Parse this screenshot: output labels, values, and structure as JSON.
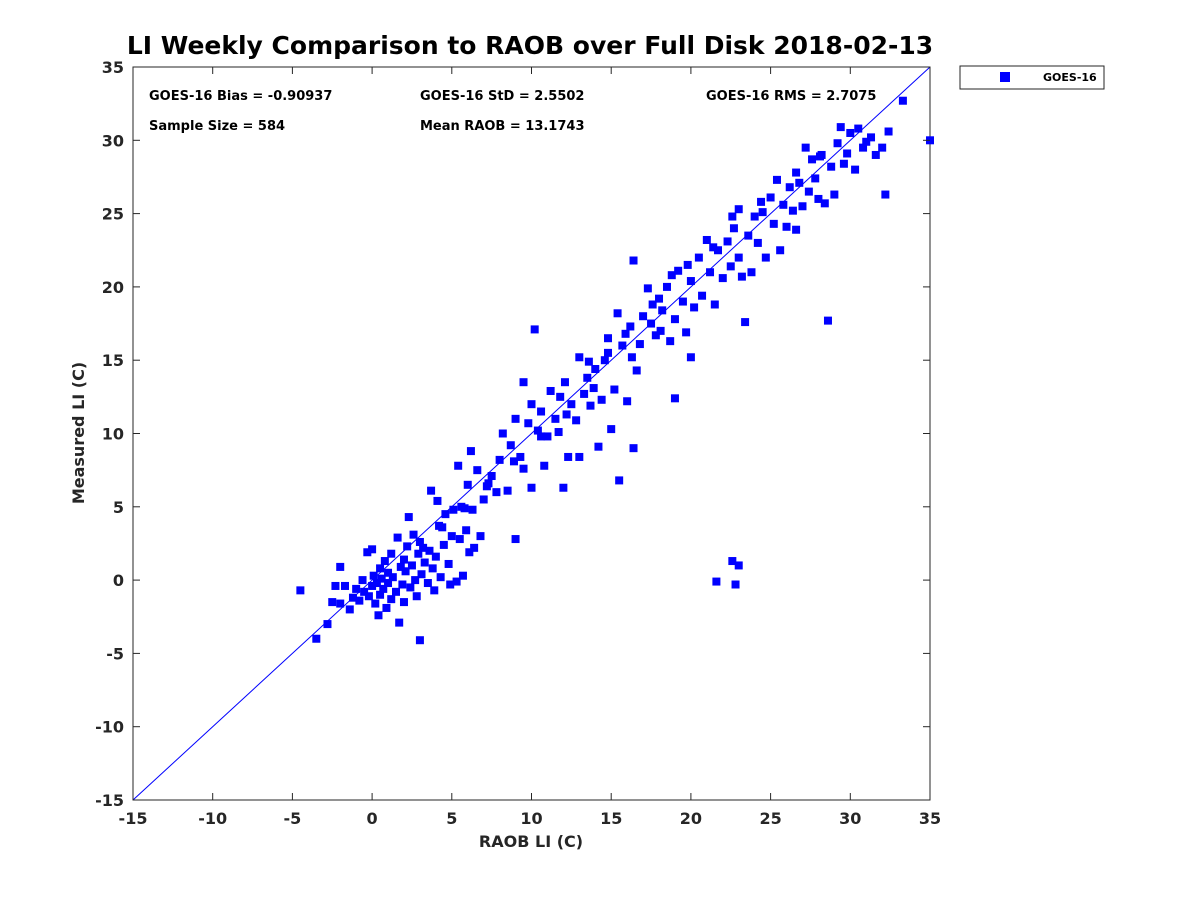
{
  "chart_data": {
    "type": "scatter",
    "title": "LI Weekly Comparison to RAOB over Full Disk 2018-02-13",
    "xlabel": "RAOB LI (C)",
    "ylabel": "Measured LI (C)",
    "xlim": [
      -15,
      35
    ],
    "ylim": [
      -15,
      35
    ],
    "xticks": [
      "-15",
      "-10",
      "-5",
      "0",
      "5",
      "10",
      "15",
      "20",
      "25",
      "30",
      "35"
    ],
    "yticks": [
      "-15",
      "-10",
      "-5",
      "0",
      "5",
      "10",
      "15",
      "20",
      "25",
      "30",
      "35"
    ],
    "grid": false,
    "legend_position": "top-right outside",
    "reference_line": {
      "from": [
        -15,
        -15
      ],
      "to": [
        35,
        35
      ],
      "color": "#0000ff"
    },
    "stats": {
      "bias": "GOES-16 Bias = -0.90937",
      "std": "GOES-16 StD = 2.5502",
      "rms": "GOES-16 RMS = 2.7075",
      "sample": "Sample Size = 584",
      "mean": "Mean RAOB = 13.1743"
    },
    "series": [
      {
        "name": "GOES-16",
        "color": "#0000ff",
        "marker": "square",
        "points": [
          [
            -4.5,
            -0.7
          ],
          [
            -3.5,
            -4.0
          ],
          [
            -2.8,
            -3.0
          ],
          [
            -2.5,
            -1.5
          ],
          [
            -2.3,
            -0.4
          ],
          [
            -2.0,
            -1.6
          ],
          [
            -2.0,
            0.9
          ],
          [
            -1.7,
            -0.4
          ],
          [
            -1.4,
            -2.0
          ],
          [
            -1.2,
            -1.2
          ],
          [
            -1.0,
            -0.6
          ],
          [
            -0.8,
            -1.4
          ],
          [
            -0.6,
            0.0
          ],
          [
            -0.5,
            -0.8
          ],
          [
            -0.3,
            1.9
          ],
          [
            -0.2,
            -1.1
          ],
          [
            0.0,
            -0.4
          ],
          [
            0.0,
            2.1
          ],
          [
            0.1,
            0.3
          ],
          [
            0.2,
            -1.6
          ],
          [
            0.3,
            -0.2
          ],
          [
            0.4,
            -2.4
          ],
          [
            0.5,
            0.8
          ],
          [
            0.5,
            -1.0
          ],
          [
            0.6,
            0.1
          ],
          [
            0.7,
            -0.6
          ],
          [
            0.8,
            1.3
          ],
          [
            0.9,
            -1.9
          ],
          [
            1.0,
            0.5
          ],
          [
            1.0,
            -0.2
          ],
          [
            1.2,
            -1.3
          ],
          [
            1.2,
            1.8
          ],
          [
            1.3,
            0.2
          ],
          [
            1.5,
            -0.8
          ],
          [
            1.6,
            2.9
          ],
          [
            1.7,
            -2.9
          ],
          [
            1.8,
            0.9
          ],
          [
            1.9,
            -0.3
          ],
          [
            2.0,
            1.4
          ],
          [
            2.0,
            -1.5
          ],
          [
            2.1,
            0.6
          ],
          [
            2.2,
            2.3
          ],
          [
            2.3,
            4.3
          ],
          [
            2.4,
            -0.5
          ],
          [
            2.5,
            1.0
          ],
          [
            2.6,
            3.1
          ],
          [
            2.7,
            0.0
          ],
          [
            2.8,
            -1.1
          ],
          [
            2.9,
            1.8
          ],
          [
            3.0,
            2.6
          ],
          [
            3.0,
            -4.1
          ],
          [
            3.1,
            0.4
          ],
          [
            3.3,
            1.2
          ],
          [
            3.5,
            -0.2
          ],
          [
            3.6,
            2.0
          ],
          [
            3.7,
            6.1
          ],
          [
            3.8,
            0.8
          ],
          [
            3.9,
            -0.7
          ],
          [
            4.0,
            1.6
          ],
          [
            4.1,
            5.4
          ],
          [
            4.2,
            3.7
          ],
          [
            4.3,
            0.2
          ],
          [
            4.5,
            2.4
          ],
          [
            4.6,
            4.5
          ],
          [
            4.8,
            1.1
          ],
          [
            4.9,
            -0.3
          ],
          [
            5.0,
            3.0
          ],
          [
            5.1,
            4.8
          ],
          [
            5.3,
            -0.1
          ],
          [
            5.4,
            7.8
          ],
          [
            5.5,
            2.8
          ],
          [
            5.6,
            5.0
          ],
          [
            5.7,
            0.3
          ],
          [
            5.9,
            3.4
          ],
          [
            6.0,
            6.5
          ],
          [
            6.1,
            1.9
          ],
          [
            6.2,
            8.8
          ],
          [
            6.3,
            4.8
          ],
          [
            6.4,
            2.2
          ],
          [
            6.6,
            7.5
          ],
          [
            6.8,
            3.0
          ],
          [
            7.0,
            5.5
          ],
          [
            7.2,
            6.4
          ],
          [
            7.5,
            7.1
          ],
          [
            7.8,
            6.0
          ],
          [
            8.0,
            8.2
          ],
          [
            8.2,
            10.0
          ],
          [
            8.5,
            6.1
          ],
          [
            8.7,
            9.2
          ],
          [
            9.0,
            2.8
          ],
          [
            9.0,
            11.0
          ],
          [
            9.3,
            8.4
          ],
          [
            9.5,
            7.6
          ],
          [
            9.8,
            10.7
          ],
          [
            10.0,
            12.0
          ],
          [
            10.0,
            6.3
          ],
          [
            10.2,
            17.1
          ],
          [
            10.4,
            10.2
          ],
          [
            10.6,
            11.5
          ],
          [
            10.8,
            7.8
          ],
          [
            11.0,
            9.8
          ],
          [
            11.2,
            12.9
          ],
          [
            11.5,
            11.0
          ],
          [
            11.7,
            10.1
          ],
          [
            12.0,
            6.3
          ],
          [
            12.1,
            13.5
          ],
          [
            12.3,
            8.4
          ],
          [
            12.5,
            12.0
          ],
          [
            12.8,
            10.9
          ],
          [
            13.0,
            8.4
          ],
          [
            13.0,
            15.2
          ],
          [
            13.3,
            12.7
          ],
          [
            13.5,
            13.8
          ],
          [
            13.7,
            11.9
          ],
          [
            14.0,
            14.4
          ],
          [
            14.2,
            9.1
          ],
          [
            14.4,
            12.3
          ],
          [
            14.6,
            15.0
          ],
          [
            14.8,
            16.5
          ],
          [
            15.0,
            10.3
          ],
          [
            15.2,
            13.0
          ],
          [
            15.4,
            18.2
          ],
          [
            15.5,
            6.8
          ],
          [
            15.7,
            16.0
          ],
          [
            16.0,
            12.2
          ],
          [
            16.2,
            17.3
          ],
          [
            16.4,
            21.8
          ],
          [
            16.4,
            9.0
          ],
          [
            16.6,
            14.3
          ],
          [
            16.8,
            16.1
          ],
          [
            17.0,
            18.0
          ],
          [
            17.3,
            19.9
          ],
          [
            17.5,
            17.5
          ],
          [
            17.8,
            16.7
          ],
          [
            18.0,
            19.2
          ],
          [
            18.2,
            18.4
          ],
          [
            18.5,
            20.0
          ],
          [
            18.7,
            16.3
          ],
          [
            19.0,
            17.8
          ],
          [
            19.0,
            12.4
          ],
          [
            19.2,
            21.1
          ],
          [
            19.5,
            19.0
          ],
          [
            19.7,
            16.9
          ],
          [
            20.0,
            15.2
          ],
          [
            20.0,
            20.4
          ],
          [
            20.2,
            18.6
          ],
          [
            20.5,
            22.0
          ],
          [
            20.7,
            19.4
          ],
          [
            21.0,
            23.2
          ],
          [
            21.2,
            21.0
          ],
          [
            21.5,
            18.8
          ],
          [
            21.7,
            22.5
          ],
          [
            22.0,
            20.6
          ],
          [
            22.3,
            23.1
          ],
          [
            22.5,
            21.4
          ],
          [
            22.7,
            24.0
          ],
          [
            23.0,
            22.0
          ],
          [
            23.0,
            25.3
          ],
          [
            23.2,
            20.7
          ],
          [
            23.4,
            17.6
          ],
          [
            23.6,
            23.5
          ],
          [
            23.8,
            21.0
          ],
          [
            24.0,
            24.8
          ],
          [
            24.2,
            23.0
          ],
          [
            24.5,
            25.1
          ],
          [
            24.7,
            22.0
          ],
          [
            25.0,
            26.1
          ],
          [
            25.2,
            24.3
          ],
          [
            25.4,
            27.3
          ],
          [
            25.6,
            22.5
          ],
          [
            25.8,
            25.6
          ],
          [
            26.0,
            24.1
          ],
          [
            26.2,
            26.8
          ],
          [
            26.4,
            25.2
          ],
          [
            26.6,
            23.9
          ],
          [
            26.8,
            27.1
          ],
          [
            27.0,
            25.5
          ],
          [
            27.2,
            29.5
          ],
          [
            27.4,
            26.5
          ],
          [
            27.6,
            28.7
          ],
          [
            27.8,
            27.4
          ],
          [
            28.0,
            26.0
          ],
          [
            28.2,
            29.0
          ],
          [
            28.4,
            25.7
          ],
          [
            28.6,
            17.7
          ],
          [
            28.8,
            28.2
          ],
          [
            29.0,
            26.3
          ],
          [
            29.2,
            29.8
          ],
          [
            29.4,
            30.9
          ],
          [
            29.6,
            28.4
          ],
          [
            29.8,
            29.1
          ],
          [
            30.0,
            30.5
          ],
          [
            30.3,
            28.0
          ],
          [
            30.5,
            30.8
          ],
          [
            30.8,
            29.5
          ],
          [
            31.0,
            29.9
          ],
          [
            31.3,
            30.2
          ],
          [
            31.6,
            29.0
          ],
          [
            32.0,
            29.5
          ],
          [
            32.2,
            26.3
          ],
          [
            32.4,
            30.6
          ],
          [
            33.3,
            32.7
          ],
          [
            35.0,
            30.0
          ],
          [
            21.6,
            -0.1
          ],
          [
            22.6,
            1.3
          ],
          [
            22.8,
            -0.3
          ],
          [
            23.0,
            1.0
          ],
          [
            9.5,
            13.5
          ],
          [
            11.8,
            12.5
          ],
          [
            13.6,
            14.9
          ],
          [
            14.8,
            15.5
          ],
          [
            15.9,
            16.8
          ],
          [
            17.6,
            18.8
          ],
          [
            18.8,
            20.8
          ],
          [
            19.8,
            21.5
          ],
          [
            21.4,
            22.7
          ],
          [
            22.6,
            24.8
          ],
          [
            24.4,
            25.8
          ],
          [
            26.6,
            27.8
          ],
          [
            28.1,
            28.9
          ],
          [
            3.2,
            2.2
          ],
          [
            4.4,
            3.6
          ],
          [
            5.8,
            4.9
          ],
          [
            7.3,
            6.6
          ],
          [
            8.9,
            8.1
          ],
          [
            10.6,
            9.8
          ],
          [
            12.2,
            11.3
          ],
          [
            13.9,
            13.1
          ],
          [
            16.3,
            15.2
          ],
          [
            18.1,
            17.0
          ]
        ]
      }
    ]
  }
}
